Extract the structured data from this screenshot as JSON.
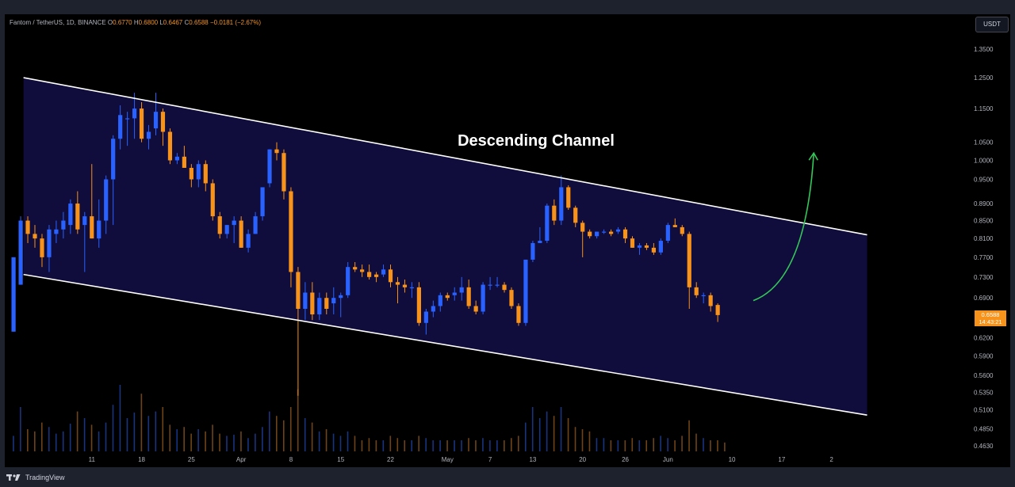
{
  "legend": {
    "symbol": "Fantom / TetherUS, 1D, BINANCE",
    "o_label": "O",
    "o_value": "0.6770",
    "h_label": "H",
    "h_value": "0.6800",
    "l_label": "L",
    "l_value": "0.6467",
    "c_label": "C",
    "c_value": "0.6588",
    "change": "−0.0181 (−2.67%)"
  },
  "currency_button": "USDT",
  "price_tag": {
    "price": "0.6588",
    "countdown": "14:43:21"
  },
  "footer": {
    "brand": "TradingView"
  },
  "colors": {
    "up": "#2962ff",
    "down": "#f7931a",
    "channel_fill": "#100c3c",
    "channel_line": "#ffffff",
    "arrow": "#34c759",
    "axis_text": "#b2b5be",
    "background": "#000000"
  },
  "icons": [
    "tradingview-logo-icon",
    "green-up-arrow-icon"
  ],
  "chart_data": {
    "type": "candlestick",
    "title": "Fantom / TetherUS, 1D, BINANCE",
    "xlabel": "",
    "ylabel": "",
    "y_ticks": [
      "1.3500",
      "1.2500",
      "1.1500",
      "1.0500",
      "1.0000",
      "0.9500",
      "0.8900",
      "0.8500",
      "0.8100",
      "0.7700",
      "0.7300",
      "0.6900",
      "0.6200",
      "0.5900",
      "0.5600",
      "0.5350",
      "0.5100",
      "0.4850",
      "0.4630"
    ],
    "x_ticks": [
      {
        "day": 11,
        "label": "11"
      },
      {
        "day": 18,
        "label": "18"
      },
      {
        "day": 25,
        "label": "25"
      },
      {
        "day": 32,
        "label": "Apr"
      },
      {
        "day": 39,
        "label": "8"
      },
      {
        "day": 46,
        "label": "15"
      },
      {
        "day": 53,
        "label": "22"
      },
      {
        "day": 61,
        "label": "May"
      },
      {
        "day": 67,
        "label": "7"
      },
      {
        "day": 73,
        "label": "13"
      },
      {
        "day": 80,
        "label": "20"
      },
      {
        "day": 86,
        "label": "26"
      },
      {
        "day": 92,
        "label": "Jun"
      },
      {
        "day": 101,
        "label": "10"
      },
      {
        "day": 108,
        "label": "17"
      },
      {
        "day": 115,
        "label": "2"
      }
    ],
    "annotation": "Descending Channel",
    "channel": {
      "upper": [
        {
          "day": 1.4,
          "price": 1.25
        },
        {
          "day": 120,
          "price": 0.818
        }
      ],
      "lower": [
        {
          "day": 1.4,
          "price": 0.735
        },
        {
          "day": 120,
          "price": 0.503
        }
      ]
    },
    "arrow": {
      "from": {
        "day": 104,
        "price": 0.685
      },
      "to": {
        "day": 112.5,
        "price": 1.02
      }
    },
    "candles": [
      {
        "o": 0.63,
        "h": 0.77,
        "l": 0.63,
        "c": 0.77
      },
      {
        "o": 0.715,
        "h": 0.86,
        "l": 0.715,
        "c": 0.85
      },
      {
        "o": 0.85,
        "h": 0.86,
        "l": 0.8,
        "c": 0.82
      },
      {
        "o": 0.82,
        "h": 0.84,
        "l": 0.79,
        "c": 0.81
      },
      {
        "o": 0.81,
        "h": 0.82,
        "l": 0.75,
        "c": 0.77
      },
      {
        "o": 0.77,
        "h": 0.84,
        "l": 0.74,
        "c": 0.83
      },
      {
        "o": 0.82,
        "h": 0.85,
        "l": 0.8,
        "c": 0.83
      },
      {
        "o": 0.83,
        "h": 0.87,
        "l": 0.81,
        "c": 0.85
      },
      {
        "o": 0.84,
        "h": 0.9,
        "l": 0.82,
        "c": 0.89
      },
      {
        "o": 0.89,
        "h": 0.92,
        "l": 0.82,
        "c": 0.83
      },
      {
        "o": 0.84,
        "h": 0.87,
        "l": 0.74,
        "c": 0.86
      },
      {
        "o": 0.86,
        "h": 0.99,
        "l": 0.81,
        "c": 0.81
      },
      {
        "o": 0.81,
        "h": 0.9,
        "l": 0.79,
        "c": 0.85
      },
      {
        "o": 0.85,
        "h": 0.96,
        "l": 0.82,
        "c": 0.95
      },
      {
        "o": 0.95,
        "h": 1.07,
        "l": 0.84,
        "c": 1.06
      },
      {
        "o": 1.06,
        "h": 1.16,
        "l": 1.03,
        "c": 1.13
      },
      {
        "o": 1.12,
        "h": 1.14,
        "l": 1.04,
        "c": 1.12
      },
      {
        "o": 1.12,
        "h": 1.2,
        "l": 1.06,
        "c": 1.15
      },
      {
        "o": 1.15,
        "h": 1.17,
        "l": 1.05,
        "c": 1.06
      },
      {
        "o": 1.06,
        "h": 1.1,
        "l": 1.03,
        "c": 1.08
      },
      {
        "o": 1.09,
        "h": 1.2,
        "l": 1.07,
        "c": 1.14
      },
      {
        "o": 1.14,
        "h": 1.15,
        "l": 1.04,
        "c": 1.08
      },
      {
        "o": 1.08,
        "h": 1.09,
        "l": 0.99,
        "c": 1.0
      },
      {
        "o": 1.0,
        "h": 1.02,
        "l": 0.99,
        "c": 1.01
      },
      {
        "o": 1.01,
        "h": 1.04,
        "l": 0.98,
        "c": 0.98
      },
      {
        "o": 0.98,
        "h": 0.99,
        "l": 0.93,
        "c": 0.95
      },
      {
        "o": 0.95,
        "h": 1.0,
        "l": 0.93,
        "c": 0.99
      },
      {
        "o": 0.99,
        "h": 1.0,
        "l": 0.92,
        "c": 0.94
      },
      {
        "o": 0.94,
        "h": 0.95,
        "l": 0.85,
        "c": 0.86
      },
      {
        "o": 0.86,
        "h": 0.87,
        "l": 0.81,
        "c": 0.82
      },
      {
        "o": 0.82,
        "h": 0.84,
        "l": 0.81,
        "c": 0.84
      },
      {
        "o": 0.84,
        "h": 0.86,
        "l": 0.8,
        "c": 0.85
      },
      {
        "o": 0.85,
        "h": 0.86,
        "l": 0.79,
        "c": 0.79
      },
      {
        "o": 0.79,
        "h": 0.83,
        "l": 0.78,
        "c": 0.82
      },
      {
        "o": 0.82,
        "h": 0.87,
        "l": 0.82,
        "c": 0.86
      },
      {
        "o": 0.86,
        "h": 0.93,
        "l": 0.85,
        "c": 0.93
      },
      {
        "o": 0.94,
        "h": 1.03,
        "l": 0.93,
        "c": 1.03
      },
      {
        "o": 1.03,
        "h": 1.05,
        "l": 1.0,
        "c": 1.02
      },
      {
        "o": 1.02,
        "h": 1.03,
        "l": 0.9,
        "c": 0.92
      },
      {
        "o": 0.92,
        "h": 0.93,
        "l": 0.71,
        "c": 0.74
      },
      {
        "o": 0.74,
        "h": 0.75,
        "l": 0.53,
        "c": 0.67
      },
      {
        "o": 0.67,
        "h": 0.72,
        "l": 0.65,
        "c": 0.7
      },
      {
        "o": 0.7,
        "h": 0.72,
        "l": 0.65,
        "c": 0.66
      },
      {
        "o": 0.66,
        "h": 0.7,
        "l": 0.65,
        "c": 0.69
      },
      {
        "o": 0.69,
        "h": 0.7,
        "l": 0.66,
        "c": 0.67
      },
      {
        "o": 0.68,
        "h": 0.71,
        "l": 0.66,
        "c": 0.69
      },
      {
        "o": 0.69,
        "h": 0.7,
        "l": 0.655,
        "c": 0.695
      },
      {
        "o": 0.695,
        "h": 0.76,
        "l": 0.69,
        "c": 0.75
      },
      {
        "o": 0.75,
        "h": 0.76,
        "l": 0.74,
        "c": 0.745
      },
      {
        "o": 0.745,
        "h": 0.755,
        "l": 0.73,
        "c": 0.74
      },
      {
        "o": 0.74,
        "h": 0.755,
        "l": 0.725,
        "c": 0.73
      },
      {
        "o": 0.735,
        "h": 0.74,
        "l": 0.72,
        "c": 0.73
      },
      {
        "o": 0.735,
        "h": 0.755,
        "l": 0.73,
        "c": 0.745
      },
      {
        "o": 0.745,
        "h": 0.755,
        "l": 0.71,
        "c": 0.72
      },
      {
        "o": 0.72,
        "h": 0.73,
        "l": 0.68,
        "c": 0.715
      },
      {
        "o": 0.715,
        "h": 0.725,
        "l": 0.7,
        "c": 0.71
      },
      {
        "o": 0.71,
        "h": 0.72,
        "l": 0.69,
        "c": 0.71
      },
      {
        "o": 0.71,
        "h": 0.72,
        "l": 0.64,
        "c": 0.645
      },
      {
        "o": 0.645,
        "h": 0.67,
        "l": 0.625,
        "c": 0.665
      },
      {
        "o": 0.665,
        "h": 0.685,
        "l": 0.655,
        "c": 0.675
      },
      {
        "o": 0.675,
        "h": 0.7,
        "l": 0.665,
        "c": 0.695
      },
      {
        "o": 0.695,
        "h": 0.7,
        "l": 0.685,
        "c": 0.69
      },
      {
        "o": 0.695,
        "h": 0.71,
        "l": 0.685,
        "c": 0.7
      },
      {
        "o": 0.7,
        "h": 0.73,
        "l": 0.685,
        "c": 0.71
      },
      {
        "o": 0.71,
        "h": 0.725,
        "l": 0.67,
        "c": 0.675
      },
      {
        "o": 0.675,
        "h": 0.685,
        "l": 0.66,
        "c": 0.665
      },
      {
        "o": 0.665,
        "h": 0.72,
        "l": 0.66,
        "c": 0.715
      },
      {
        "o": 0.715,
        "h": 0.73,
        "l": 0.705,
        "c": 0.715
      },
      {
        "o": 0.715,
        "h": 0.73,
        "l": 0.71,
        "c": 0.715
      },
      {
        "o": 0.715,
        "h": 0.72,
        "l": 0.7,
        "c": 0.705
      },
      {
        "o": 0.705,
        "h": 0.71,
        "l": 0.67,
        "c": 0.675
      },
      {
        "o": 0.675,
        "h": 0.68,
        "l": 0.64,
        "c": 0.645
      },
      {
        "o": 0.645,
        "h": 0.765,
        "l": 0.64,
        "c": 0.765
      },
      {
        "o": 0.765,
        "h": 0.805,
        "l": 0.76,
        "c": 0.8
      },
      {
        "o": 0.8,
        "h": 0.835,
        "l": 0.8,
        "c": 0.805
      },
      {
        "o": 0.805,
        "h": 0.89,
        "l": 0.8,
        "c": 0.885
      },
      {
        "o": 0.885,
        "h": 0.9,
        "l": 0.84,
        "c": 0.85
      },
      {
        "o": 0.85,
        "h": 0.96,
        "l": 0.84,
        "c": 0.93
      },
      {
        "o": 0.93,
        "h": 0.935,
        "l": 0.875,
        "c": 0.88
      },
      {
        "o": 0.88,
        "h": 0.885,
        "l": 0.835,
        "c": 0.845
      },
      {
        "o": 0.845,
        "h": 0.85,
        "l": 0.77,
        "c": 0.825
      },
      {
        "o": 0.825,
        "h": 0.83,
        "l": 0.81,
        "c": 0.815
      },
      {
        "o": 0.815,
        "h": 0.825,
        "l": 0.81,
        "c": 0.825
      },
      {
        "o": 0.825,
        "h": 0.83,
        "l": 0.82,
        "c": 0.825
      },
      {
        "o": 0.825,
        "h": 0.83,
        "l": 0.815,
        "c": 0.82
      },
      {
        "o": 0.825,
        "h": 0.835,
        "l": 0.82,
        "c": 0.83
      },
      {
        "o": 0.83,
        "h": 0.835,
        "l": 0.8,
        "c": 0.81
      },
      {
        "o": 0.81,
        "h": 0.815,
        "l": 0.79,
        "c": 0.79
      },
      {
        "o": 0.79,
        "h": 0.8,
        "l": 0.775,
        "c": 0.795
      },
      {
        "o": 0.795,
        "h": 0.8,
        "l": 0.785,
        "c": 0.79
      },
      {
        "o": 0.79,
        "h": 0.8,
        "l": 0.775,
        "c": 0.78
      },
      {
        "o": 0.78,
        "h": 0.81,
        "l": 0.775,
        "c": 0.805
      },
      {
        "o": 0.805,
        "h": 0.845,
        "l": 0.8,
        "c": 0.84
      },
      {
        "o": 0.84,
        "h": 0.855,
        "l": 0.835,
        "c": 0.835
      },
      {
        "o": 0.835,
        "h": 0.84,
        "l": 0.815,
        "c": 0.82
      },
      {
        "o": 0.82,
        "h": 0.825,
        "l": 0.67,
        "c": 0.71
      },
      {
        "o": 0.71,
        "h": 0.72,
        "l": 0.69,
        "c": 0.695
      },
      {
        "o": 0.695,
        "h": 0.7,
        "l": 0.68,
        "c": 0.695
      },
      {
        "o": 0.695,
        "h": 0.7,
        "l": 0.665,
        "c": 0.675
      },
      {
        "o": 0.677,
        "h": 0.68,
        "l": 0.6467,
        "c": 0.6588
      }
    ],
    "volumes": [
      14,
      40,
      20,
      18,
      26,
      22,
      16,
      18,
      25,
      36,
      30,
      24,
      18,
      26,
      42,
      60,
      30,
      35,
      52,
      32,
      36,
      40,
      24,
      20,
      22,
      16,
      20,
      18,
      24,
      16,
      14,
      15,
      18,
      12,
      16,
      22,
      36,
      32,
      28,
      40,
      56,
      30,
      26,
      18,
      20,
      16,
      14,
      18,
      14,
      10,
      12,
      10,
      10,
      14,
      12,
      10,
      10,
      14,
      12,
      10,
      10,
      10,
      10,
      10,
      12,
      10,
      12,
      10,
      10,
      10,
      12,
      14,
      26,
      40,
      30,
      36,
      32,
      40,
      30,
      22,
      20,
      18,
      12,
      12,
      10,
      10,
      10,
      12,
      10,
      10,
      12,
      14,
      12,
      10,
      14,
      28,
      16,
      12,
      10,
      10,
      8
    ],
    "volume_axis_max": 100
  }
}
